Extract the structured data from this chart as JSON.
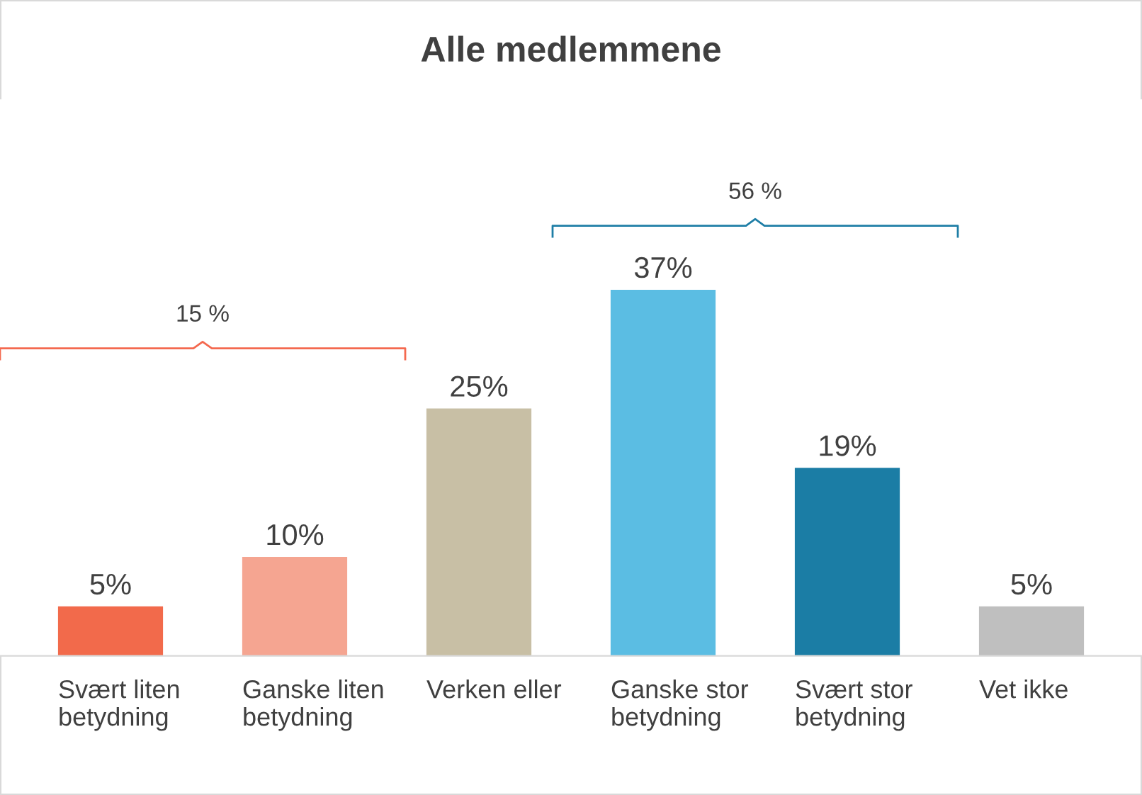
{
  "chart_data": {
    "type": "bar",
    "title": "Alle medlemmene",
    "categories": [
      "Svært liten\nbetydning",
      "Ganske liten\nbetydning",
      "Verken eller",
      "Ganske stor\nbetydning",
      "Svært stor\nbetydning",
      "Vet ikke"
    ],
    "values": [
      5,
      10,
      25,
      37,
      19,
      5
    ],
    "colors": [
      "#f26a4b",
      "#f5a591",
      "#c8bfa5",
      "#5bbde3",
      "#1b7da5",
      "#bfbfbf"
    ],
    "value_labels": [
      "5%",
      "10%",
      "25%",
      "37%",
      "19%",
      "5%"
    ],
    "annotations": [
      "15 %",
      "56 %"
    ],
    "grid": false,
    "legend": false
  }
}
